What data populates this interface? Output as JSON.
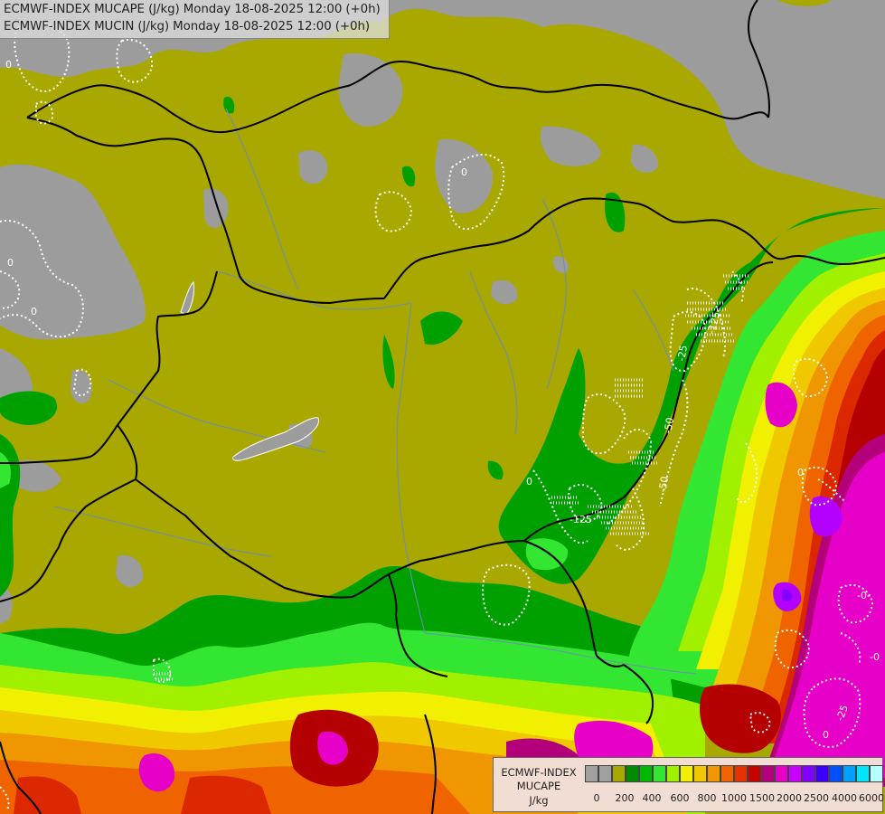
{
  "title": {
    "line1": "ECMWF-INDEX MUCAPE (J/kg) Monday 18-08-2025 12:00 (+0h)",
    "line2": "ECMWF-INDEX MUCIN (J/kg) Monday 18-08-2025 12:00 (+0h)"
  },
  "legend": {
    "name_line1": "ECMWF-INDEX",
    "name_line2": "MUCAPE",
    "unit": "J/kg",
    "colors": [
      "#a0a0a0",
      "#a0a0a0",
      "#a8a800",
      "#008a00",
      "#00b800",
      "#32e632",
      "#a0f000",
      "#f0f000",
      "#f0c800",
      "#f09600",
      "#f06400",
      "#e63200",
      "#c80000",
      "#b4007a",
      "#e600c8",
      "#c800ff",
      "#8200ff",
      "#3c00ff",
      "#0050ff",
      "#00a0ff",
      "#00e6ff",
      "#b4ffff"
    ],
    "ticks": [
      "0",
      "200",
      "400",
      "600",
      "800",
      "1000",
      "1500",
      "2000",
      "2500",
      "4000",
      "6000"
    ]
  },
  "contour_labels": [
    "0",
    "0",
    "0",
    "0",
    "0",
    "0",
    "-0-",
    "-0",
    "0",
    "-25",
    "-50",
    "-50",
    "-125",
    "-25",
    "-125"
  ],
  "colors": {
    "no_cape": "#9c9c9c",
    "olive": "#a8a800",
    "dark_green": "#00a000",
    "green": "#00c800",
    "light_green": "#3ce63c",
    "yellow_green": "#a0f000",
    "yellow": "#f0f000",
    "orange_yellow": "#f0c800",
    "orange": "#f09600",
    "dark_orange": "#f06400",
    "red": "#dc2800",
    "dark_red": "#b40000",
    "purple_red": "#b4007a",
    "magenta": "#e600c8",
    "violet": "#b400ff",
    "border": "#000000",
    "river": "#6e8cbe",
    "cin_contour": "#ffffff"
  }
}
